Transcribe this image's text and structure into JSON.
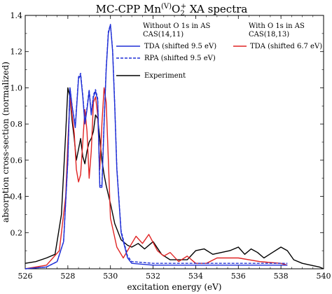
{
  "chart_data": {
    "type": "line",
    "title": "MC-CPP Mn(V)O2+ XA spectra",
    "title_parts": {
      "main": "MC-CPP Mn",
      "superscript": "(V)",
      "rest": "O",
      "subscript": "2",
      "charge": "+",
      "tail": " XA spectra"
    },
    "xlabel": "excitation energy (eV)",
    "ylabel": "absorption cross-section (normalized)",
    "xlim": [
      526,
      540
    ],
    "ylim": [
      0,
      1.4
    ],
    "xticks": [
      "526",
      "528",
      "530",
      "532",
      "534",
      "536",
      "538",
      "540"
    ],
    "yticks": [
      "0.2",
      "0.4",
      "0.6",
      "0.8",
      "1.0",
      "1.2",
      "1.4"
    ],
    "grid": false,
    "legend": {
      "placement": "top",
      "group1_heading": [
        "Without O 1s in AS",
        "CAS(14,11)"
      ],
      "group2_heading": [
        "With O 1s in AS",
        "CAS(18,13)"
      ],
      "entries": [
        {
          "label": "TDA (shifted 9.5 eV)",
          "color": "#1f2fd6",
          "style": "solid"
        },
        {
          "label": "RPA (shifted 9.5 eV)",
          "color": "#1f2fd6",
          "style": "dashed"
        },
        {
          "label": "TDA (shifted 6.7 eV)",
          "color": "#e02424",
          "style": "solid"
        },
        {
          "label": "Experiment",
          "color": "#000000",
          "style": "solid"
        }
      ]
    },
    "series": [
      {
        "color": "#1f2fd6",
        "style": "solid",
        "x": [
          526,
          527,
          527.5,
          527.8,
          528.0,
          528.1,
          528.2,
          528.35,
          528.5,
          528.6,
          528.7,
          528.8,
          528.9,
          529.0,
          529.1,
          529.2,
          529.3,
          529.4,
          529.5,
          529.6,
          529.7,
          529.8,
          529.9,
          530.0,
          530.1,
          530.2,
          530.3,
          530.5,
          530.8,
          531,
          532,
          533,
          534,
          535,
          536,
          537,
          538.3
        ],
        "y": [
          0.0,
          0.01,
          0.04,
          0.15,
          0.6,
          1.0,
          0.9,
          0.78,
          1.05,
          1.07,
          0.95,
          0.8,
          0.88,
          0.98,
          0.85,
          0.95,
          0.98,
          0.93,
          0.45,
          0.45,
          0.8,
          1.1,
          1.3,
          1.35,
          1.2,
          0.9,
          0.55,
          0.2,
          0.06,
          0.03,
          0.02,
          0.02,
          0.02,
          0.02,
          0.02,
          0.02,
          0.02
        ]
      },
      {
        "color": "#1f2fd6",
        "style": "dashed",
        "x": [
          526,
          527,
          527.5,
          527.8,
          528.0,
          528.1,
          528.2,
          528.35,
          528.5,
          528.6,
          528.7,
          528.8,
          528.9,
          529.0,
          529.1,
          529.2,
          529.3,
          529.4,
          529.5,
          529.6,
          529.7,
          529.8,
          529.9,
          530.0,
          530.1,
          530.2,
          530.3,
          530.5,
          530.8,
          531,
          532,
          533,
          534,
          535,
          536,
          537,
          538.3
        ],
        "y": [
          0.0,
          0.01,
          0.04,
          0.15,
          0.6,
          1.0,
          0.9,
          0.79,
          1.06,
          1.08,
          0.96,
          0.81,
          0.89,
          0.99,
          0.86,
          0.96,
          0.99,
          0.94,
          0.46,
          0.46,
          0.81,
          1.11,
          1.31,
          1.35,
          1.21,
          0.91,
          0.56,
          0.21,
          0.07,
          0.04,
          0.03,
          0.03,
          0.03,
          0.03,
          0.03,
          0.03,
          0.03
        ]
      },
      {
        "color": "#e02424",
        "style": "solid",
        "x": [
          526,
          527,
          527.6,
          527.9,
          528.0,
          528.1,
          528.2,
          528.3,
          528.4,
          528.5,
          528.6,
          528.7,
          528.8,
          528.9,
          529.0,
          529.1,
          529.2,
          529.3,
          529.4,
          529.5,
          529.6,
          529.7,
          529.8,
          529.9,
          530.0,
          530.3,
          530.6,
          531.0,
          531.2,
          531.5,
          531.8,
          532.2,
          532.5,
          532.8,
          533.2,
          533.6,
          534.0,
          534.5,
          535.0,
          536.0,
          537.0,
          538.0,
          538.3
        ],
        "y": [
          0.0,
          0.02,
          0.1,
          0.4,
          0.7,
          0.95,
          0.85,
          0.75,
          0.55,
          0.48,
          0.52,
          0.7,
          0.88,
          0.76,
          0.5,
          0.65,
          0.92,
          0.95,
          0.85,
          0.55,
          0.8,
          1.0,
          0.92,
          0.6,
          0.28,
          0.12,
          0.06,
          0.14,
          0.18,
          0.14,
          0.19,
          0.1,
          0.07,
          0.09,
          0.04,
          0.07,
          0.03,
          0.03,
          0.06,
          0.06,
          0.04,
          0.03,
          0.02
        ]
      },
      {
        "color": "#000000",
        "style": "solid",
        "x": [
          526,
          526.5,
          527.0,
          527.4,
          527.7,
          527.9,
          528.0,
          528.1,
          528.2,
          528.3,
          528.4,
          528.5,
          528.6,
          528.7,
          528.8,
          528.9,
          529.0,
          529.1,
          529.2,
          529.3,
          529.4,
          529.5,
          529.6,
          529.7,
          529.8,
          530.0,
          530.2,
          530.5,
          530.8,
          531.0,
          531.3,
          531.6,
          532.0,
          532.4,
          532.8,
          533.2,
          533.6,
          534.0,
          534.4,
          534.8,
          535.2,
          535.6,
          536.0,
          536.3,
          536.6,
          536.9,
          537.2,
          537.6,
          538.0,
          538.3,
          538.6,
          539.0,
          539.4,
          539.8,
          540.0
        ],
        "y": [
          0.03,
          0.04,
          0.06,
          0.08,
          0.3,
          0.75,
          1.0,
          0.95,
          0.82,
          0.72,
          0.6,
          0.66,
          0.72,
          0.62,
          0.58,
          0.65,
          0.7,
          0.72,
          0.76,
          0.85,
          0.83,
          0.72,
          0.6,
          0.52,
          0.46,
          0.36,
          0.25,
          0.16,
          0.13,
          0.12,
          0.14,
          0.11,
          0.15,
          0.08,
          0.05,
          0.05,
          0.05,
          0.1,
          0.11,
          0.08,
          0.09,
          0.1,
          0.12,
          0.08,
          0.11,
          0.09,
          0.06,
          0.09,
          0.12,
          0.1,
          0.05,
          0.03,
          0.02,
          0.01,
          0.0
        ]
      }
    ]
  }
}
